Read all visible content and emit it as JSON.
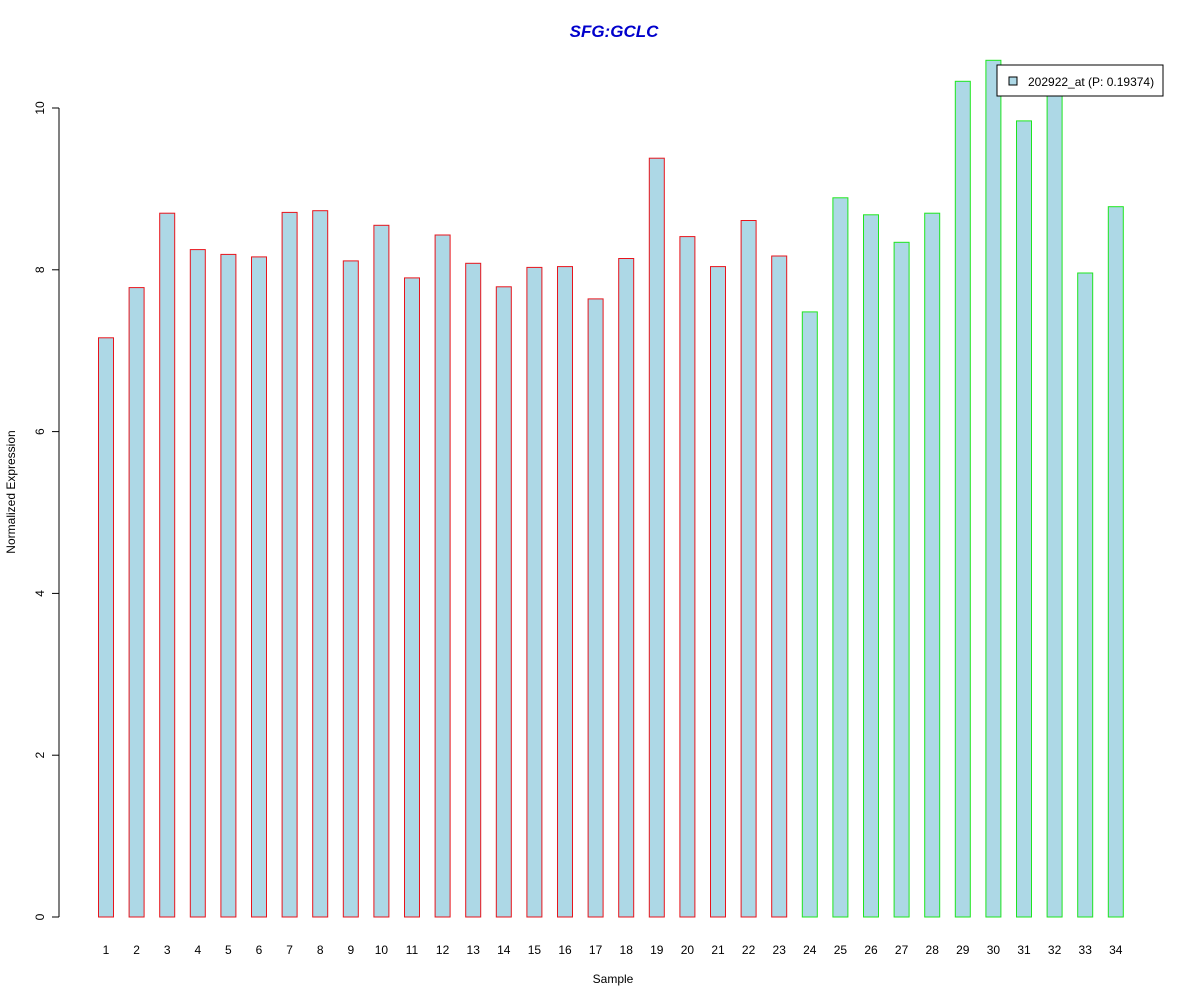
{
  "chart_data": {
    "type": "bar",
    "title": "SFG:GCLC",
    "xlabel": "Sample",
    "ylabel": "Normalized Expression",
    "categories": [
      "1",
      "2",
      "3",
      "4",
      "5",
      "6",
      "7",
      "8",
      "9",
      "10",
      "11",
      "12",
      "13",
      "14",
      "15",
      "16",
      "17",
      "18",
      "19",
      "20",
      "21",
      "22",
      "23",
      "24",
      "25",
      "26",
      "27",
      "28",
      "29",
      "30",
      "31",
      "32",
      "33",
      "34"
    ],
    "series": [
      {
        "name": "202922_at (P: 0.19374)",
        "values": [
          7.16,
          7.78,
          8.7,
          8.25,
          8.19,
          8.16,
          8.71,
          8.73,
          8.11,
          8.55,
          7.9,
          8.43,
          8.08,
          7.79,
          8.03,
          8.04,
          7.64,
          8.14,
          9.38,
          8.41,
          8.04,
          8.61,
          8.17,
          7.48,
          8.89,
          8.68,
          8.34,
          8.7,
          10.33,
          10.59,
          9.84,
          10.16,
          7.96,
          8.78
        ]
      }
    ],
    "bar_groups": [
      "red",
      "red",
      "red",
      "red",
      "red",
      "red",
      "red",
      "red",
      "red",
      "red",
      "red",
      "red",
      "red",
      "red",
      "red",
      "red",
      "red",
      "red",
      "red",
      "red",
      "red",
      "red",
      "red",
      "green",
      "green",
      "green",
      "green",
      "green",
      "green",
      "green",
      "green",
      "green",
      "green",
      "green"
    ],
    "yticks": [
      0,
      2,
      4,
      6,
      8,
      10
    ],
    "ylim": [
      0,
      10.6
    ],
    "legend": "top-right",
    "grid": false,
    "colors": {
      "bar_fill": "#add8e6",
      "border_red": "#e8141c",
      "border_green": "#1ee61e",
      "title": "#0000cc",
      "axis": "#000000"
    }
  }
}
